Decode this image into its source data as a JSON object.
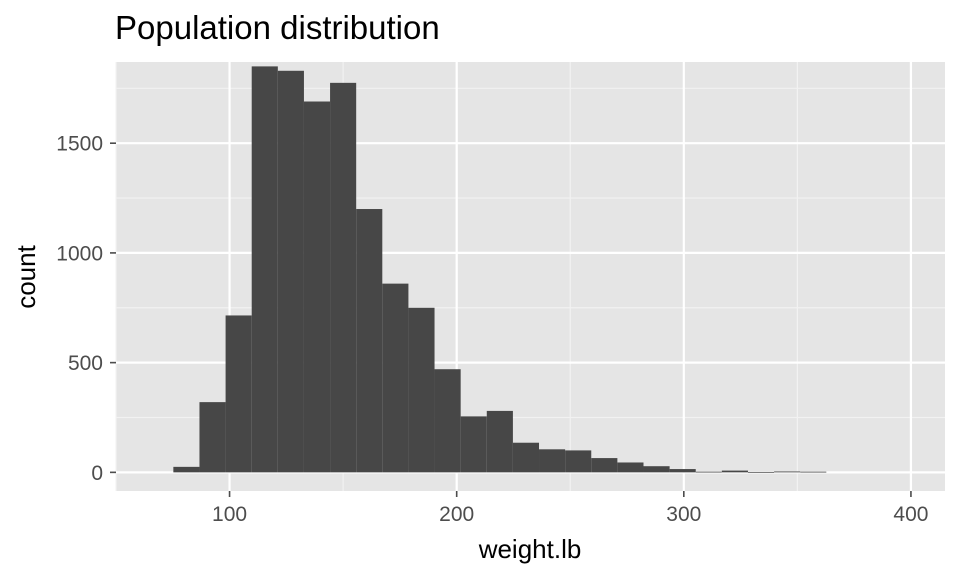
{
  "chart_data": {
    "type": "bar",
    "title": "Population distribution",
    "xlabel": "weight.lb",
    "ylabel": "count",
    "xlim": [
      50,
      415
    ],
    "ylim": [
      -85,
      1870
    ],
    "x_ticks": [
      100,
      200,
      300,
      400
    ],
    "y_ticks": [
      0,
      500,
      1000,
      1500
    ],
    "bin_width": 11.5,
    "bins": [
      {
        "x": 81,
        "count": 25
      },
      {
        "x": 92.5,
        "count": 320
      },
      {
        "x": 104,
        "count": 715
      },
      {
        "x": 115.5,
        "count": 1850
      },
      {
        "x": 127,
        "count": 1830
      },
      {
        "x": 138.5,
        "count": 1690
      },
      {
        "x": 150,
        "count": 1775
      },
      {
        "x": 161.5,
        "count": 1200
      },
      {
        "x": 173,
        "count": 860
      },
      {
        "x": 184.5,
        "count": 750
      },
      {
        "x": 196,
        "count": 470
      },
      {
        "x": 207.5,
        "count": 255
      },
      {
        "x": 219,
        "count": 280
      },
      {
        "x": 230.5,
        "count": 135
      },
      {
        "x": 242,
        "count": 105
      },
      {
        "x": 253.5,
        "count": 100
      },
      {
        "x": 265,
        "count": 65
      },
      {
        "x": 276.5,
        "count": 45
      },
      {
        "x": 288,
        "count": 28
      },
      {
        "x": 299.5,
        "count": 15
      },
      {
        "x": 311,
        "count": 3
      },
      {
        "x": 322.5,
        "count": 8
      },
      {
        "x": 334,
        "count": 2
      },
      {
        "x": 345.5,
        "count": 4
      },
      {
        "x": 357,
        "count": 3
      }
    ],
    "colors": {
      "panel": "#e5e5e5",
      "grid_major": "#ffffff",
      "grid_minor": "#f2f2f2",
      "bar": "#474747",
      "tick": "#4d4d4d"
    },
    "grid": true,
    "legend": "none"
  }
}
